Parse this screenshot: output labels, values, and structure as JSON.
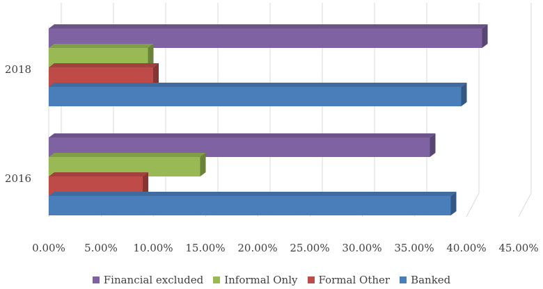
{
  "chart_data": {
    "type": "bar",
    "orientation": "horizontal",
    "three_d": true,
    "categories": [
      "2016",
      "2018"
    ],
    "series": [
      {
        "name": "Banked",
        "color": "#4a7ebb",
        "values": [
          38.5,
          39.5
        ]
      },
      {
        "name": "Formal Other",
        "color": "#be4b48",
        "values": [
          9.0,
          10.0
        ]
      },
      {
        "name": "Informal Only",
        "color": "#98b954",
        "values": [
          14.5,
          9.5
        ]
      },
      {
        "name": "Financial excluded",
        "color": "#7e62a1",
        "values": [
          36.5,
          41.5
        ]
      }
    ],
    "xlim": [
      0,
      45
    ],
    "x_ticks": [
      "0.00%",
      "5.00%",
      "10.00%",
      "15.00%",
      "20.00%",
      "25.00%",
      "30.00%",
      "35.00%",
      "40.00%",
      "45.00%"
    ],
    "legend_order": [
      "Financial excluded",
      "Informal Only",
      "Formal Other",
      "Banked"
    ],
    "legend_position": "bottom",
    "grid": true
  }
}
